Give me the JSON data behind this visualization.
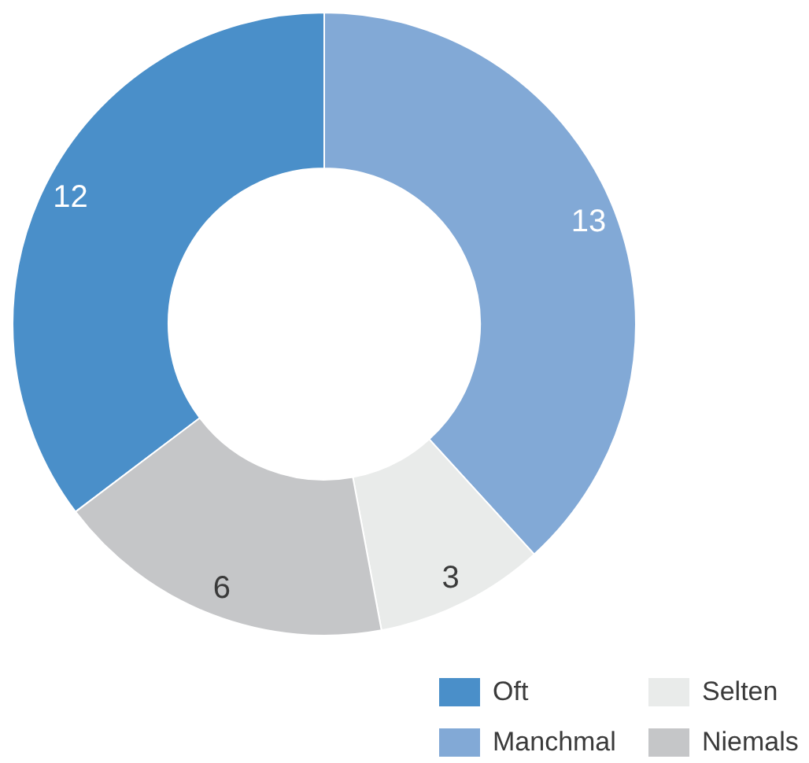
{
  "chart_data": {
    "type": "donut",
    "categories": [
      "Oft",
      "Manchmal",
      "Selten",
      "Niemals"
    ],
    "values": [
      12,
      13,
      3,
      6
    ],
    "colors": [
      "#4a8fc9",
      "#82a9d6",
      "#e9ebea",
      "#c5c6c8"
    ],
    "data_labels": true,
    "legend": "bottom right"
  }
}
